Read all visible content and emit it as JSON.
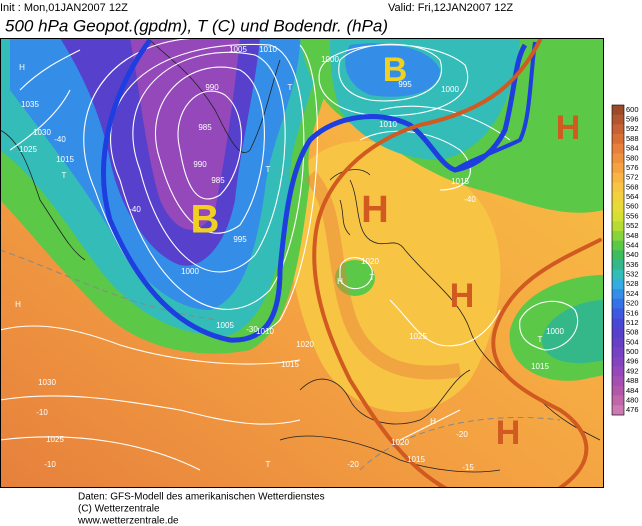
{
  "header": {
    "init": "Init : Mon,01JAN2007 12Z",
    "valid": "Valid: Fri,12JAN2007 12Z",
    "title": "500 hPa Geopot.(gpdm), T (C) und Bodendr. (hPa)"
  },
  "map": {
    "labels": [
      "H",
      "1035",
      "1030",
      "1025",
      "1015",
      "T",
      "1005",
      "1010",
      "990",
      "985",
      "990",
      "985",
      "995",
      "1000",
      "1005",
      "1010",
      "1015",
      "1020",
      "1030",
      "1025",
      "H",
      "T",
      "1000",
      "995",
      "1000",
      "1015",
      "1020",
      "1025",
      "1015",
      "1000",
      "T",
      "H",
      "T",
      "H",
      "1020",
      "1010",
      "1015",
      "T",
      "T",
      "-40",
      "-20",
      "-20",
      "-15",
      "-10",
      "-10",
      "-30",
      "-40",
      "-40"
    ],
    "annotations": [
      "B",
      "B",
      "H",
      "H",
      "H",
      "H"
    ]
  },
  "colorbar": {
    "levels": [
      600,
      596,
      592,
      588,
      584,
      580,
      576,
      572,
      568,
      564,
      560,
      556,
      552,
      548,
      544,
      540,
      536,
      532,
      528,
      524,
      520,
      516,
      512,
      508,
      504,
      500,
      496,
      492,
      488,
      484,
      480,
      476
    ],
    "colors": [
      "#9c4a28",
      "#b25630",
      "#c66234",
      "#d87036",
      "#e6803c",
      "#ee9240",
      "#f4a242",
      "#f8b444",
      "#f8c444",
      "#f2d040",
      "#e8da3a",
      "#d4e034",
      "#b4dc34",
      "#88d43c",
      "#5cc848",
      "#3cbc5c",
      "#34b88a",
      "#34bcb8",
      "#34ace0",
      "#348ee8",
      "#3472e6",
      "#3c5ade",
      "#4848d6",
      "#5640cc",
      "#6440c6",
      "#7442c2",
      "#8444c0",
      "#9448ba",
      "#a450b2",
      "#b258aa",
      "#c066aa",
      "#cc7ab4"
    ]
  },
  "footer": {
    "line1": "Daten: GFS-Modell des amerikanischen Wetterdienstes",
    "line2": "(C) Wetterzentrale",
    "line3": "www.wetterzentrale.de"
  }
}
